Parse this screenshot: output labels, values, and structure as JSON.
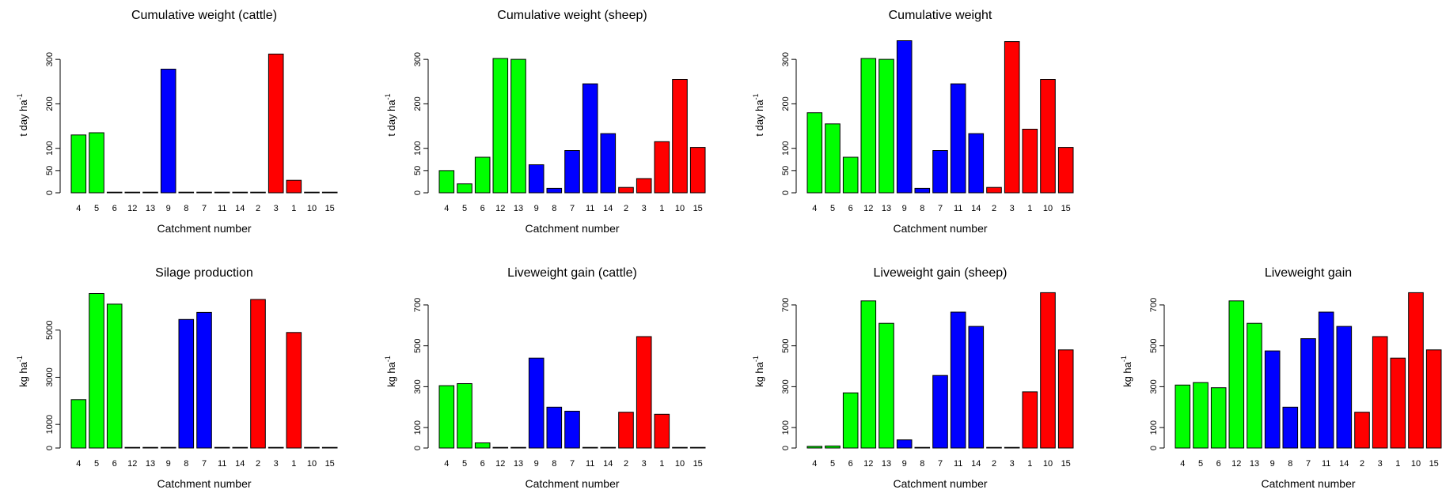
{
  "colors": {
    "green": "#00ff00",
    "blue": "#0000ff",
    "red": "#ff0000",
    "axis": "#000000"
  },
  "chart_data": [
    {
      "type": "bar",
      "title": "Cumulative weight (cattle)",
      "xlabel": "Catchment number",
      "ylabel_base": "t day ha",
      "ylabel_sup": "-1",
      "yticks": [
        "0",
        "50",
        "100",
        "200",
        "300"
      ],
      "ylim": [
        0,
        350
      ],
      "categories": [
        "4",
        "5",
        "6",
        "12",
        "13",
        "9",
        "8",
        "7",
        "11",
        "14",
        "2",
        "3",
        "1",
        "10",
        "15"
      ],
      "values": [
        130,
        135,
        0,
        0,
        0,
        278,
        0,
        0,
        0,
        0,
        0,
        312,
        28,
        0,
        0
      ],
      "colors": [
        "green",
        "green",
        "green",
        "green",
        "green",
        "blue",
        "blue",
        "blue",
        "blue",
        "blue",
        "red",
        "red",
        "red",
        "red",
        "red"
      ]
    },
    {
      "type": "bar",
      "title": "Cumulative weight (sheep)",
      "xlabel": "Catchment number",
      "ylabel_base": "t day ha",
      "ylabel_sup": "-1",
      "yticks": [
        "0",
        "50",
        "100",
        "200",
        "300"
      ],
      "ylim": [
        0,
        350
      ],
      "categories": [
        "4",
        "5",
        "6",
        "12",
        "13",
        "9",
        "8",
        "7",
        "11",
        "14",
        "2",
        "3",
        "1",
        "10",
        "15"
      ],
      "values": [
        50,
        20,
        80,
        302,
        300,
        63,
        10,
        95,
        245,
        133,
        12,
        32,
        115,
        255,
        102
      ],
      "colors": [
        "green",
        "green",
        "green",
        "green",
        "green",
        "blue",
        "blue",
        "blue",
        "blue",
        "blue",
        "red",
        "red",
        "red",
        "red",
        "red"
      ]
    },
    {
      "type": "bar",
      "title": "Cumulative weight",
      "xlabel": "Catchment number",
      "ylabel_base": "t day ha",
      "ylabel_sup": "-1",
      "yticks": [
        "0",
        "50",
        "100",
        "200",
        "300"
      ],
      "ylim": [
        0,
        350
      ],
      "categories": [
        "4",
        "5",
        "6",
        "12",
        "13",
        "9",
        "8",
        "7",
        "11",
        "14",
        "2",
        "3",
        "1",
        "10",
        "15"
      ],
      "values": [
        180,
        155,
        80,
        302,
        300,
        342,
        10,
        95,
        245,
        133,
        12,
        340,
        143,
        255,
        102
      ],
      "colors": [
        "green",
        "green",
        "green",
        "green",
        "green",
        "blue",
        "blue",
        "blue",
        "blue",
        "blue",
        "red",
        "red",
        "red",
        "red",
        "red"
      ]
    },
    {
      "type": "bar",
      "title": "Silage production",
      "xlabel": "Catchment number",
      "ylabel_base": "kg ha",
      "ylabel_sup": "-1",
      "yticks": [
        "0",
        "1000",
        "3000",
        "5000"
      ],
      "ylim": [
        0,
        6500
      ],
      "categories": [
        "4",
        "5",
        "6",
        "12",
        "13",
        "9",
        "8",
        "7",
        "11",
        "14",
        "2",
        "3",
        "1",
        "10",
        "15"
      ],
      "values": [
        2050,
        6550,
        6100,
        0,
        0,
        0,
        5450,
        5750,
        0,
        0,
        6300,
        0,
        4900,
        0,
        0
      ],
      "colors": [
        "green",
        "green",
        "green",
        "green",
        "green",
        "blue",
        "blue",
        "blue",
        "blue",
        "blue",
        "red",
        "red",
        "red",
        "red",
        "red"
      ]
    },
    {
      "type": "bar",
      "title": "Liveweight gain (cattle)",
      "xlabel": "Catchment number",
      "ylabel_base": "kg ha",
      "ylabel_sup": "-1",
      "yticks": [
        "0",
        "100",
        "300",
        "500",
        "700"
      ],
      "ylim": [
        0,
        750
      ],
      "categories": [
        "4",
        "5",
        "6",
        "12",
        "13",
        "9",
        "8",
        "7",
        "11",
        "14",
        "2",
        "3",
        "1",
        "10",
        "15"
      ],
      "values": [
        305,
        315,
        25,
        0,
        0,
        440,
        200,
        180,
        0,
        0,
        175,
        545,
        165,
        0,
        0
      ],
      "colors": [
        "green",
        "green",
        "green",
        "green",
        "green",
        "blue",
        "blue",
        "blue",
        "blue",
        "blue",
        "red",
        "red",
        "red",
        "red",
        "red"
      ]
    },
    {
      "type": "bar",
      "title": "Liveweight gain (sheep)",
      "xlabel": "Catchment number",
      "ylabel_base": "kg ha",
      "ylabel_sup": "-1",
      "yticks": [
        "0",
        "100",
        "300",
        "500",
        "700"
      ],
      "ylim": [
        0,
        750
      ],
      "categories": [
        "4",
        "5",
        "6",
        "12",
        "13",
        "9",
        "8",
        "7",
        "11",
        "14",
        "2",
        "3",
        "1",
        "10",
        "15"
      ],
      "values": [
        8,
        10,
        270,
        720,
        610,
        40,
        0,
        355,
        665,
        595,
        0,
        0,
        275,
        760,
        480
      ],
      "colors": [
        "green",
        "green",
        "green",
        "green",
        "green",
        "blue",
        "blue",
        "blue",
        "blue",
        "blue",
        "red",
        "red",
        "red",
        "red",
        "red"
      ]
    },
    {
      "type": "bar",
      "title": "Liveweight gain",
      "xlabel": "Catchment number",
      "ylabel_base": "kg ha",
      "ylabel_sup": "-1",
      "yticks": [
        "0",
        "100",
        "300",
        "500",
        "700"
      ],
      "ylim": [
        0,
        750
      ],
      "categories": [
        "4",
        "5",
        "6",
        "12",
        "13",
        "9",
        "8",
        "7",
        "11",
        "14",
        "2",
        "3",
        "1",
        "10",
        "15"
      ],
      "values": [
        308,
        320,
        295,
        720,
        610,
        475,
        200,
        535,
        665,
        595,
        175,
        545,
        440,
        760,
        480
      ],
      "colors": [
        "green",
        "green",
        "green",
        "green",
        "green",
        "blue",
        "blue",
        "blue",
        "blue",
        "blue",
        "red",
        "red",
        "red",
        "red",
        "red"
      ]
    }
  ]
}
